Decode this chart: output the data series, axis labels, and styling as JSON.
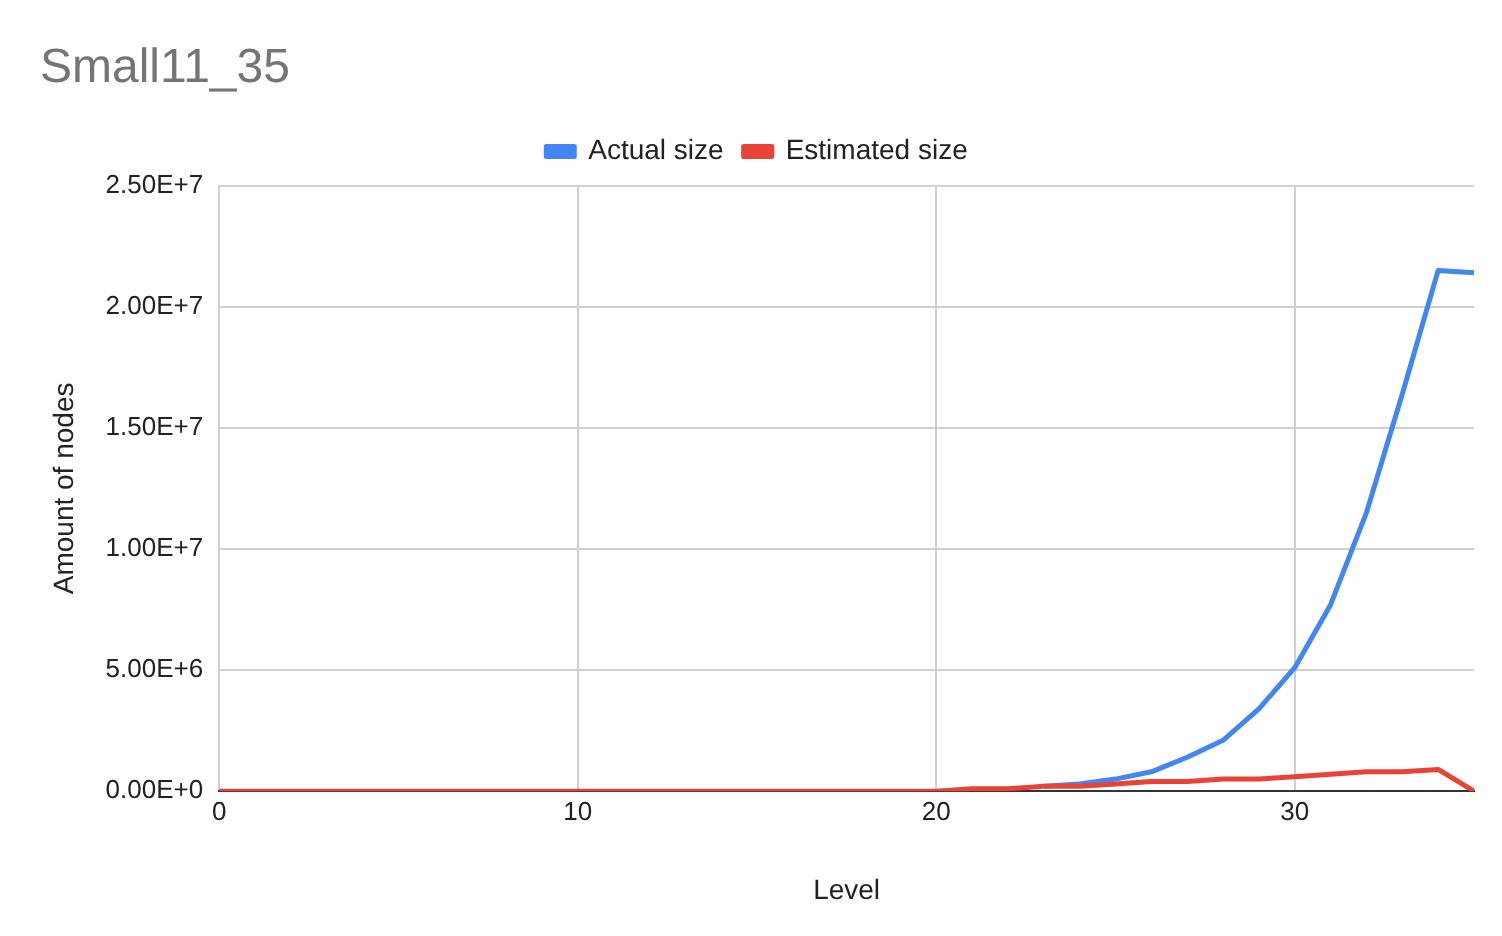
{
  "chart_data": {
    "type": "line",
    "title": "Small11_35",
    "xlabel": "Level",
    "ylabel": "Amount of nodes",
    "x": [
      0,
      1,
      2,
      3,
      4,
      5,
      6,
      7,
      8,
      9,
      10,
      11,
      12,
      13,
      14,
      15,
      16,
      17,
      18,
      19,
      20,
      21,
      22,
      23,
      24,
      25,
      26,
      27,
      28,
      29,
      30,
      31,
      32,
      33,
      34,
      35
    ],
    "series": [
      {
        "name": "Actual size",
        "color": "#4285f4",
        "values": [
          null,
          null,
          null,
          null,
          null,
          null,
          null,
          null,
          null,
          null,
          null,
          null,
          null,
          null,
          null,
          null,
          null,
          null,
          null,
          null,
          null,
          null,
          null,
          200000,
          300000,
          500000,
          800000,
          1400000,
          2100000,
          3400000,
          5100000,
          7700000,
          11500000,
          16400000,
          21500000,
          21400000
        ]
      },
      {
        "name": "Estimated size",
        "color": "#ea4335",
        "values": [
          0,
          0,
          0,
          0,
          0,
          0,
          0,
          0,
          0,
          0,
          0,
          0,
          0,
          0,
          0,
          0,
          0,
          0,
          0,
          0,
          0,
          100000,
          100000,
          200000,
          200000,
          300000,
          400000,
          400000,
          500000,
          500000,
          600000,
          700000,
          800000,
          800000,
          900000,
          0
        ]
      }
    ],
    "xlim": [
      0,
      35
    ],
    "xticks": [
      0,
      10,
      20,
      30
    ],
    "ylim": [
      0,
      25000000
    ],
    "yticks": [
      {
        "value": 0,
        "label": "0.00E+0"
      },
      {
        "value": 5000000,
        "label": "5.00E+6"
      },
      {
        "value": 10000000,
        "label": "1.00E+7"
      },
      {
        "value": 15000000,
        "label": "1.50E+7"
      },
      {
        "value": 20000000,
        "label": "2.00E+7"
      },
      {
        "value": 25000000,
        "label": "2.50E+7"
      }
    ],
    "grid": true,
    "legend": "top",
    "marker": "none",
    "line_style": "solid"
  }
}
